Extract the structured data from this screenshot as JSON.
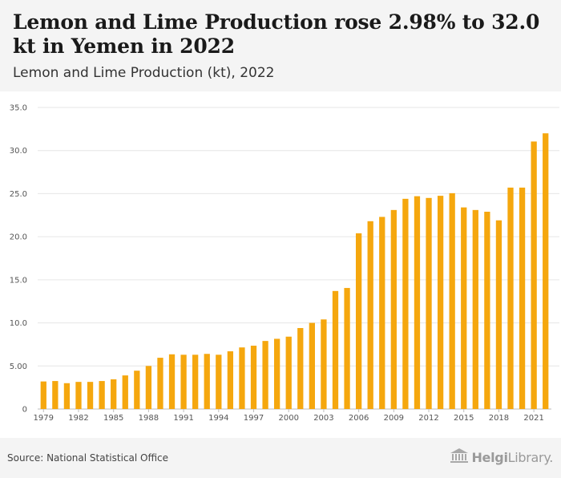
{
  "header": {
    "title": "Lemon and Lime Production rose 2.98% to 32.0 kt in Yemen in 2022",
    "subtitle": "Lemon and Lime Production (kt), 2022"
  },
  "footer": {
    "source": "Source: National Statistical Office",
    "brand_bold": "Helgi",
    "brand_light": "Library."
  },
  "colors": {
    "bar": "#F5A70E",
    "grid": "#e6e6e6",
    "header_bg": "#f4f4f4"
  },
  "chart_data": {
    "type": "bar",
    "title": "Lemon and Lime Production (kt), 2022",
    "xlabel": "",
    "ylabel": "",
    "ylim": [
      0,
      35
    ],
    "yticks": [
      0,
      5,
      10,
      15,
      20,
      25,
      30,
      35
    ],
    "ytick_labels": [
      "0",
      "5.00",
      "10.0",
      "15.0",
      "20.0",
      "25.0",
      "30.0",
      "35.0"
    ],
    "grid": true,
    "xtick_labels": [
      "1979",
      "1982",
      "1985",
      "1988",
      "1991",
      "1994",
      "1997",
      "2000",
      "2003",
      "2006",
      "2009",
      "2012",
      "2015",
      "2018",
      "2021"
    ],
    "categories": [
      "1979",
      "1980",
      "1981",
      "1982",
      "1983",
      "1984",
      "1985",
      "1986",
      "1987",
      "1988",
      "1989",
      "1990",
      "1991",
      "1992",
      "1993",
      "1994",
      "1995",
      "1996",
      "1997",
      "1998",
      "1999",
      "2000",
      "2001",
      "2002",
      "2003",
      "2004",
      "2005",
      "2006",
      "2007",
      "2008",
      "2009",
      "2010",
      "2011",
      "2012",
      "2013",
      "2014",
      "2015",
      "2016",
      "2017",
      "2018",
      "2019",
      "2020",
      "2021",
      "2022"
    ],
    "values": [
      3.2,
      3.25,
      3.0,
      3.15,
      3.15,
      3.25,
      3.45,
      3.9,
      4.45,
      5.0,
      5.95,
      6.35,
      6.3,
      6.3,
      6.4,
      6.3,
      6.7,
      7.15,
      7.35,
      7.9,
      8.15,
      8.4,
      9.4,
      10.0,
      10.4,
      13.7,
      14.05,
      20.4,
      21.8,
      22.3,
      23.1,
      24.4,
      24.7,
      24.5,
      24.75,
      25.05,
      23.4,
      23.1,
      22.9,
      21.9,
      25.7,
      25.7,
      31.05,
      32.0
    ]
  }
}
